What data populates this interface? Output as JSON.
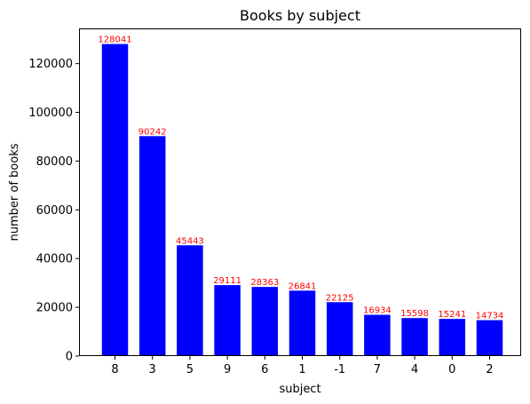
{
  "chart_data": {
    "type": "bar",
    "title": "Books by subject",
    "xlabel": "subject",
    "ylabel": "number of books",
    "categories": [
      "8",
      "3",
      "5",
      "9",
      "6",
      "1",
      "-1",
      "7",
      "4",
      "0",
      "2"
    ],
    "values": [
      128041,
      90242,
      45443,
      29111,
      28363,
      26841,
      22125,
      16934,
      15598,
      15241,
      14734
    ],
    "data_labels": [
      "128041",
      "90242",
      "45443",
      "29111",
      "28363",
      "26841",
      "22125",
      "16934",
      "15598",
      "15241",
      "14734"
    ],
    "ylim": [
      0,
      134443
    ],
    "yticks": [
      0,
      20000,
      40000,
      60000,
      80000,
      100000,
      120000
    ],
    "ytick_labels": [
      "0",
      "20000",
      "40000",
      "60000",
      "80000",
      "100000",
      "120000"
    ],
    "grid": false,
    "legend": "none",
    "colors": {
      "bar": "#0000ff",
      "data_label": "#ff0000",
      "axis": "#000000",
      "background": "#ffffff"
    }
  }
}
